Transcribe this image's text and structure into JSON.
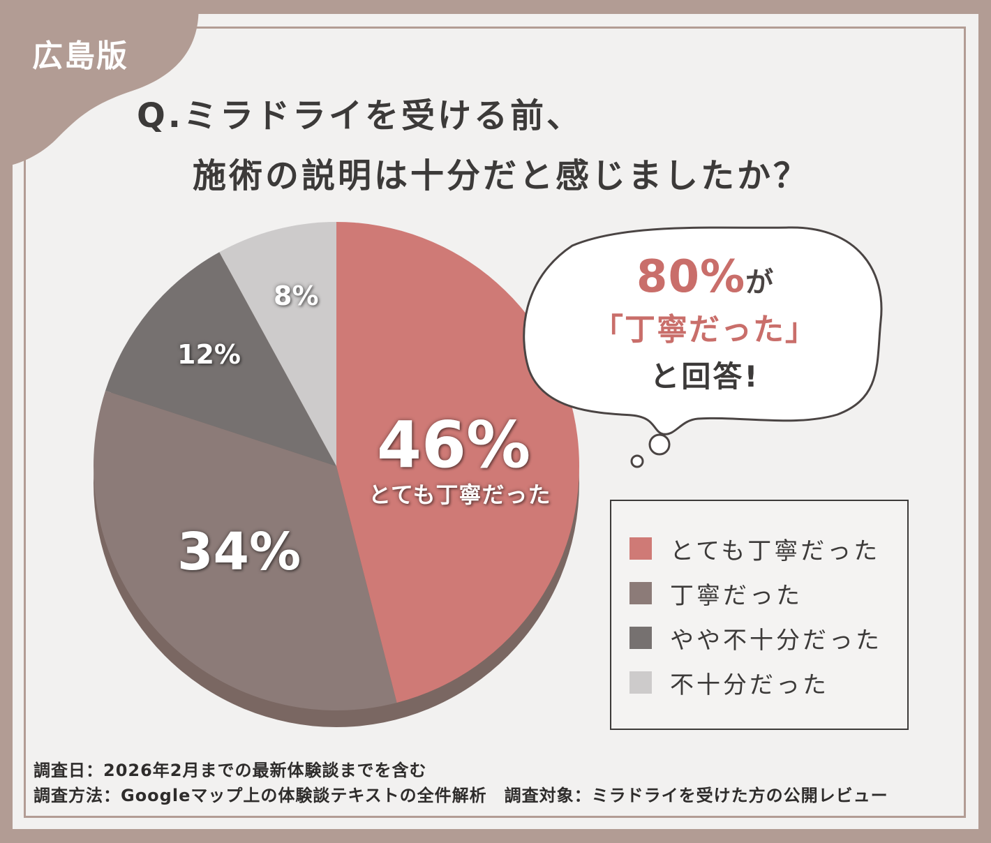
{
  "badge": "広島版",
  "title": {
    "line1": "Q.ミラドライを受ける前、",
    "line2": "施術の説明は十分だと感じましたか？"
  },
  "chart_data": {
    "type": "pie",
    "categories": [
      "とても丁寧だった",
      "丁寧だった",
      "やや不十分だった",
      "不十分だった"
    ],
    "values": [
      46,
      34,
      12,
      8
    ],
    "unit": "%",
    "colors": [
      "#cf7a76",
      "#8c7b78",
      "#767170",
      "#cdcbcb"
    ],
    "legend_position": "right"
  },
  "labels": {
    "big": "46%",
    "big_sub": "とても丁寧だった",
    "second": "34%",
    "third": "12%",
    "fourth": "8%"
  },
  "bubble": {
    "big": "80%",
    "big_suffix": "が",
    "quote": "「丁寧だった」",
    "tail": "と回答!"
  },
  "legend": [
    {
      "label": "とても丁寧だった",
      "color": "#cf7a76"
    },
    {
      "label": "丁寧だった",
      "color": "#8c7b78"
    },
    {
      "label": "やや不十分だった",
      "color": "#767170"
    },
    {
      "label": "不十分だった",
      "color": "#cdcbcb"
    }
  ],
  "footer": {
    "line1": "調査日：2026年2月までの最新体験談までを含む",
    "line2": "調査方法：Googleマップ上の体験談テキストの全件解析　調査対象：ミラドライを受けた方の公開レビュー"
  },
  "colors": {
    "frame": "#b29c94",
    "background": "#f2f1f0",
    "accent": "#c96e6a",
    "text": "#3c3a39"
  }
}
